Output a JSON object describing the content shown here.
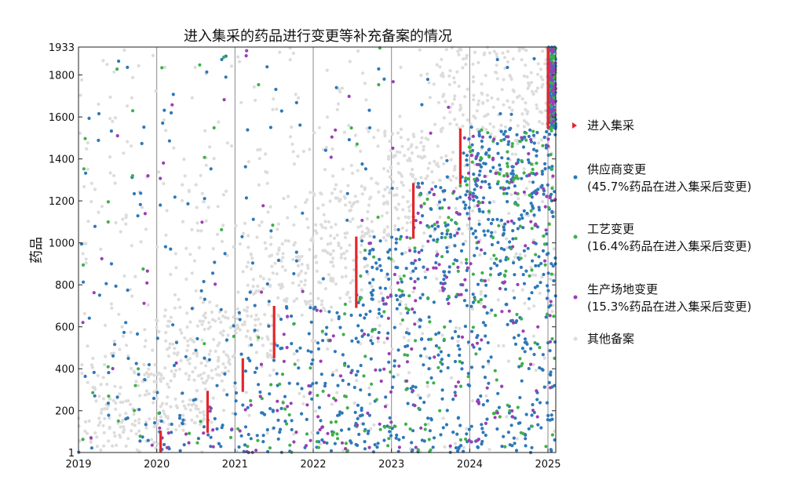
{
  "chart_data": {
    "type": "scatter",
    "title": "进入集采的药品进行变更等补充备案的情况",
    "xlabel": "",
    "ylabel": "药品",
    "xlim": [
      2019,
      2025.1
    ],
    "ylim": [
      1,
      1933
    ],
    "xticks": [
      "2019",
      "2020",
      "2021",
      "2022",
      "2023",
      "2024",
      "2025"
    ],
    "yticks": [
      "1",
      "200",
      "400",
      "600",
      "800",
      "1000",
      "1200",
      "1400",
      "1600",
      "1800",
      "1933"
    ],
    "grid": "vertical lines at each year",
    "colors": {
      "procurement": "#e3262b",
      "supplier": "#2e78b8",
      "process": "#3fb04a",
      "site": "#9b3fb2",
      "other": "#dcdcdc"
    },
    "legend": {
      "position": "right",
      "entries": [
        {
          "key": "procurement",
          "line1": "进入集采",
          "line2": ""
        },
        {
          "key": "supplier",
          "line1": "供应商变更",
          "line2": "(45.7%药品在进入集采后变更)"
        },
        {
          "key": "process",
          "line1": "工艺变更",
          "line2": "(16.4%药品在进入集采后变更)"
        },
        {
          "key": "site",
          "line1": "生产场地变更",
          "line2": "(15.3%药品在进入集采后变更)"
        },
        {
          "key": "other",
          "line1": "其他备案",
          "line2": ""
        }
      ]
    },
    "procurement_batches": [
      {
        "x": 2020.05,
        "y": [
          1,
          105
        ]
      },
      {
        "x": 2020.65,
        "y": [
          95,
          295
        ]
      },
      {
        "x": 2021.1,
        "y": [
          290,
          450
        ]
      },
      {
        "x": 2021.5,
        "y": [
          450,
          700
        ]
      },
      {
        "x": 2022.55,
        "y": [
          690,
          1030
        ]
      },
      {
        "x": 2023.28,
        "y": [
          1020,
          1285
        ]
      },
      {
        "x": 2023.88,
        "y": [
          1280,
          1545
        ]
      },
      {
        "x": 2025.0,
        "y": [
          1545,
          1933
        ]
      }
    ],
    "series": [
      {
        "key": "supplier",
        "share_after_procurement": 45.7
      },
      {
        "key": "process",
        "share_after_procurement": 16.4
      },
      {
        "key": "site",
        "share_after_procurement": 15.3
      },
      {
        "key": "other"
      }
    ]
  }
}
